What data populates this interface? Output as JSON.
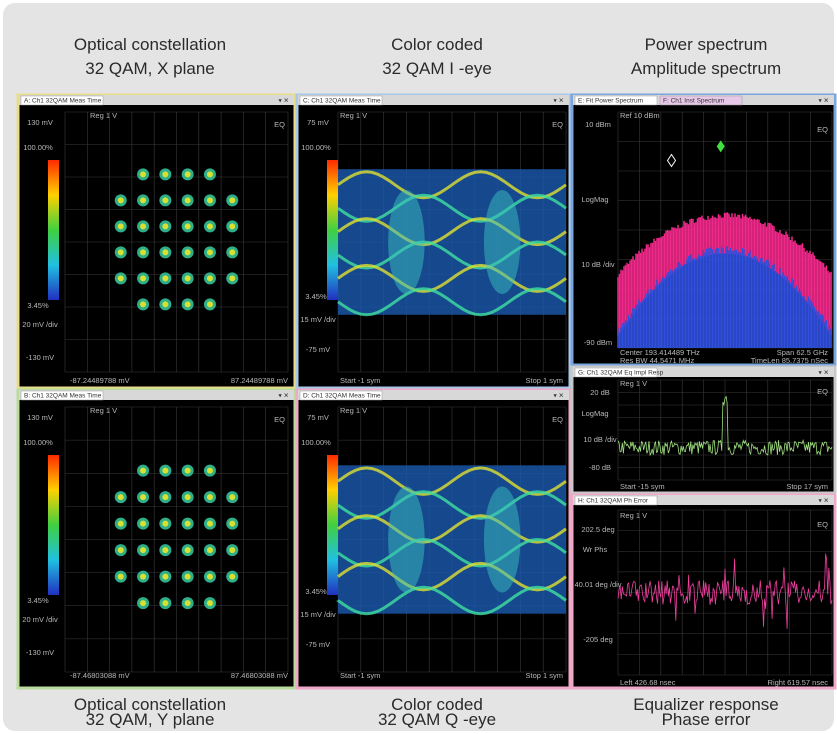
{
  "captions_top": [
    {
      "line1": "Optical constellation",
      "line2": "32 QAM, X plane"
    },
    {
      "line1": "Color coded",
      "line2": "32 QAM I -eye"
    },
    {
      "line1": "Power spectrum",
      "line2": "Amplitude spectrum"
    }
  ],
  "captions_bottom": [
    {
      "line1": "Optical constellation",
      "line2": "32 QAM, Y plane"
    },
    {
      "line1": "Color coded",
      "line2": "32 QAM Q -eye"
    },
    {
      "line1": "Equalizer response",
      "line2": "Phase error"
    }
  ],
  "panels": [
    {
      "tabs": [
        "A: Ch1 32QAM Meas Time"
      ],
      "labels": [
        "Reg 1 V",
        "EQ",
        "130 mV",
        "100.00%",
        "3.45%",
        "20 mV /div",
        "-130 mV",
        "-87.24489788 mV",
        "87.24489788 mV"
      ]
    },
    {
      "tabs": [
        "C: Ch1 32QAM Meas Time"
      ],
      "labels": [
        "Reg 1 V",
        "EQ",
        "75 mV",
        "100.00%",
        "3.45%",
        "15 mV /div",
        "-75 mV",
        "Start -1 sym",
        "Stop 1 sym"
      ]
    },
    {
      "tabs": [
        "E: Fit Power Spectrum",
        "F: Ch1 Inst Spectrum"
      ],
      "labels": [
        "Ref 10 dBm",
        "EQ",
        "10 dBm",
        "LogMag",
        "10 dB /div",
        "-90 dBm",
        "Center 193.414489 THz",
        "Span 62.5 GHz",
        "Res BW 44.5471 MHz",
        "TimeLen 85.7375 nSec"
      ]
    },
    {
      "tabs": [
        "B: Ch1 32QAM Meas Time"
      ],
      "labels": [
        "Reg 1 V",
        "EQ",
        "130 mV",
        "100.00%",
        "3.45%",
        "20 mV /div",
        "-130 mV",
        "-87.46803088 mV",
        "87.46803088 mV"
      ]
    },
    {
      "tabs": [
        "D: Ch1 32QAM Meas Time"
      ],
      "labels": [
        "Reg 1 V",
        "EQ",
        "75 mV",
        "100.00%",
        "3.45%",
        "15 mV /div",
        "-75 mV",
        "Start -1 sym",
        "Stop 1 sym"
      ]
    },
    {
      "tabs": [
        "G: Ch1 32QAM Eq Impl Resp"
      ],
      "labels": [
        "Reg 1 V",
        "EQ",
        "20 dB",
        "LogMag",
        "10 dB /div",
        "-80 dB",
        "Start -15 sym",
        "Stop 17 sym"
      ]
    },
    {
      "tabs": [
        "H: Ch1 32QAM Ph Error"
      ],
      "labels": [
        "Reg 1 V",
        "EQ",
        "202.5 deg",
        "Wr Phs",
        "40.01 deg /div",
        "-205 deg",
        "Left 426.68 nsec",
        "Right 619.57 nsec"
      ]
    }
  ]
}
